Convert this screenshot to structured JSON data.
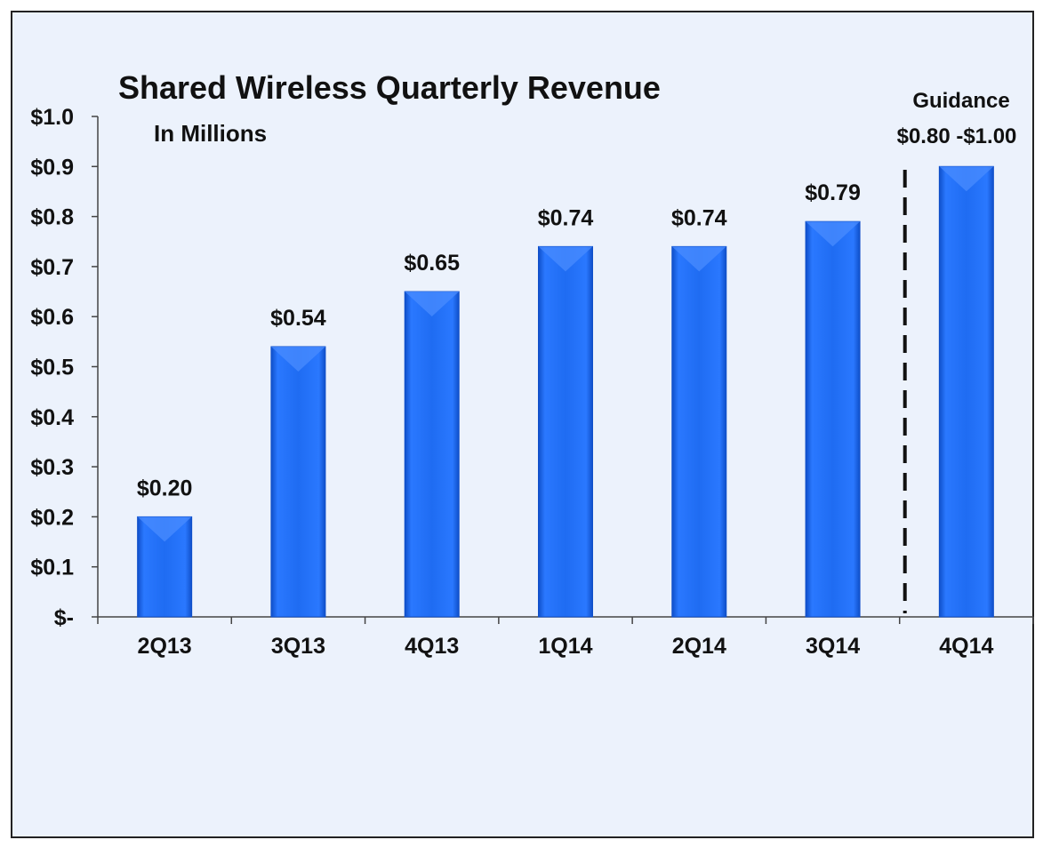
{
  "chart_data": {
    "type": "bar",
    "title": "Shared Wireless Quarterly Revenue",
    "subtitle": "In Millions",
    "categories": [
      "2Q13",
      "3Q13",
      "4Q13",
      "1Q14",
      "2Q14",
      "3Q14",
      "4Q14"
    ],
    "values": [
      0.2,
      0.54,
      0.65,
      0.74,
      0.74,
      0.79,
      0.9
    ],
    "value_labels": [
      "$0.20",
      "$0.54",
      "$0.65",
      "$0.74",
      "$0.74",
      "$0.79",
      ""
    ],
    "ylim": [
      0,
      1.0
    ],
    "yticks": [
      {
        "value": 0.0,
        "label": "$-"
      },
      {
        "value": 0.1,
        "label": "$0.1"
      },
      {
        "value": 0.2,
        "label": "$0.2"
      },
      {
        "value": 0.3,
        "label": "$0.3"
      },
      {
        "value": 0.4,
        "label": "$0.4"
      },
      {
        "value": 0.5,
        "label": "$0.5"
      },
      {
        "value": 0.6,
        "label": "$0.6"
      },
      {
        "value": 0.7,
        "label": "$0.7"
      },
      {
        "value": 0.8,
        "label": "$0.8"
      },
      {
        "value": 0.9,
        "label": "$0.9"
      },
      {
        "value": 1.0,
        "label": "$1.0"
      }
    ],
    "guidance": {
      "label": "Guidance",
      "range_label": "$0.80 -$1.00",
      "low": 0.8,
      "high": 1.0,
      "applies_to": "4Q14"
    },
    "grid": false,
    "colors": {
      "bar": "#1f6cf2",
      "bar_dark": "#0f4fc9",
      "bar_light": "#4a8cff",
      "background": "#ecf2fc",
      "divider": "#111111"
    }
  }
}
